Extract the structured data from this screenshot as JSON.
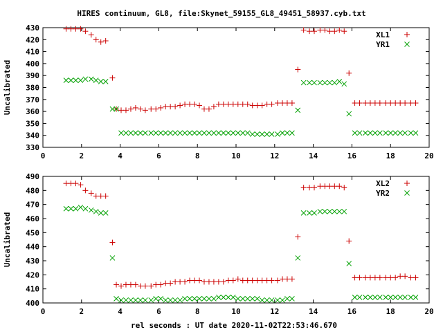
{
  "title": "HIRES continuum, GL8, file:Skynet_59155_GL8_49451_58937.cyb.txt",
  "xlabel": "rel seconds : UT date 2020-11-02T22:53:46.670",
  "colors": {
    "series_a": "#cc0000",
    "series_b": "#00a000",
    "axis": "#000000"
  },
  "chart_data": [
    {
      "type": "scatter",
      "ylabel": "Uncalibrated",
      "xlim": [
        0,
        20
      ],
      "ylim": [
        330,
        430
      ],
      "xticks": [
        0,
        2,
        4,
        6,
        8,
        10,
        12,
        14,
        16,
        18,
        20
      ],
      "yticks": [
        330,
        340,
        350,
        360,
        370,
        380,
        390,
        400,
        410,
        420,
        430
      ],
      "legend": "top-right",
      "x": [
        1.2,
        1.45,
        1.7,
        1.95,
        2.2,
        2.5,
        2.75,
        3.0,
        3.25,
        3.6,
        3.8,
        4.05,
        4.3,
        4.55,
        4.8,
        5.05,
        5.3,
        5.6,
        5.85,
        6.1,
        6.35,
        6.6,
        6.85,
        7.1,
        7.35,
        7.6,
        7.85,
        8.1,
        8.35,
        8.6,
        8.85,
        9.1,
        9.35,
        9.6,
        9.85,
        10.1,
        10.35,
        10.6,
        10.85,
        11.1,
        11.35,
        11.6,
        11.85,
        12.15,
        12.4,
        12.65,
        12.9,
        13.2,
        13.5,
        13.8,
        14.05,
        14.35,
        14.6,
        14.85,
        15.1,
        15.35,
        15.6,
        15.85,
        16.15,
        16.4,
        16.7,
        16.95,
        17.2,
        17.45,
        17.75,
        18.0,
        18.25,
        18.5,
        18.75,
        19.05,
        19.3
      ],
      "series": [
        {
          "name": "XL1",
          "marker": "plus",
          "values": [
            429,
            429,
            429,
            429,
            427,
            424,
            420,
            418,
            419,
            388,
            362,
            361,
            361,
            362,
            363,
            362,
            361,
            362,
            362,
            363,
            364,
            364,
            364,
            365,
            366,
            366,
            366,
            365,
            362,
            362,
            364,
            366,
            366,
            366,
            366,
            366,
            366,
            366,
            365,
            365,
            365,
            366,
            366,
            367,
            367,
            367,
            367,
            395,
            428,
            427,
            427,
            428,
            428,
            427,
            427,
            428,
            427,
            392,
            367,
            367,
            367,
            367,
            367,
            367,
            367,
            367,
            367,
            367,
            367,
            367,
            367
          ]
        },
        {
          "name": "YR1",
          "marker": "cross",
          "values": [
            386,
            386,
            386,
            386,
            387,
            387,
            386,
            385,
            385,
            362,
            362,
            342,
            342,
            342,
            342,
            342,
            342,
            342,
            342,
            342,
            342,
            342,
            342,
            342,
            342,
            342,
            342,
            342,
            342,
            342,
            342,
            342,
            342,
            342,
            342,
            342,
            342,
            342,
            341,
            341,
            341,
            341,
            341,
            341,
            342,
            342,
            342,
            361,
            384,
            384,
            384,
            384,
            384,
            384,
            384,
            385,
            383,
            358,
            342,
            342,
            342,
            342,
            342,
            342,
            342,
            342,
            342,
            342,
            342,
            342,
            342
          ]
        }
      ]
    },
    {
      "type": "scatter",
      "ylabel": "Uncalibrated",
      "xlim": [
        0,
        20
      ],
      "ylim": [
        400,
        490
      ],
      "xticks": [
        0,
        2,
        4,
        6,
        8,
        10,
        12,
        14,
        16,
        18,
        20
      ],
      "yticks": [
        400,
        410,
        420,
        430,
        440,
        450,
        460,
        470,
        480,
        490
      ],
      "legend": "top-right",
      "x": [
        1.2,
        1.45,
        1.7,
        1.95,
        2.2,
        2.5,
        2.75,
        3.0,
        3.25,
        3.6,
        3.8,
        4.05,
        4.3,
        4.55,
        4.8,
        5.05,
        5.3,
        5.6,
        5.85,
        6.1,
        6.35,
        6.6,
        6.85,
        7.1,
        7.35,
        7.6,
        7.85,
        8.1,
        8.35,
        8.6,
        8.85,
        9.1,
        9.35,
        9.6,
        9.85,
        10.1,
        10.35,
        10.6,
        10.85,
        11.1,
        11.35,
        11.6,
        11.85,
        12.15,
        12.4,
        12.65,
        12.9,
        13.2,
        13.5,
        13.8,
        14.05,
        14.35,
        14.6,
        14.85,
        15.1,
        15.35,
        15.6,
        15.85,
        16.15,
        16.4,
        16.7,
        16.95,
        17.2,
        17.45,
        17.75,
        18.0,
        18.25,
        18.5,
        18.75,
        19.05,
        19.3
      ],
      "series": [
        {
          "name": "XL2",
          "marker": "plus",
          "values": [
            485,
            485,
            485,
            484,
            480,
            478,
            476,
            476,
            476,
            443,
            413,
            412,
            413,
            413,
            413,
            412,
            412,
            412,
            413,
            413,
            414,
            414,
            415,
            415,
            415,
            416,
            416,
            416,
            415,
            415,
            415,
            415,
            415,
            416,
            416,
            417,
            416,
            416,
            416,
            416,
            416,
            416,
            416,
            416,
            417,
            417,
            417,
            447,
            482,
            482,
            482,
            483,
            483,
            483,
            483,
            483,
            482,
            444,
            418,
            418,
            418,
            418,
            418,
            418,
            418,
            418,
            418,
            419,
            419,
            418,
            418
          ]
        },
        {
          "name": "YR2",
          "marker": "cross",
          "values": [
            467,
            467,
            467,
            468,
            467,
            466,
            465,
            464,
            464,
            432,
            403,
            402,
            402,
            402,
            402,
            402,
            402,
            402,
            403,
            403,
            402,
            402,
            402,
            402,
            403,
            403,
            403,
            403,
            403,
            403,
            403,
            404,
            404,
            404,
            404,
            403,
            403,
            403,
            403,
            403,
            402,
            402,
            402,
            402,
            402,
            403,
            403,
            432,
            464,
            464,
            464,
            465,
            465,
            465,
            465,
            465,
            465,
            428,
            404,
            404,
            404,
            404,
            404,
            404,
            404,
            404,
            404,
            404,
            404,
            404,
            404
          ]
        }
      ]
    }
  ]
}
